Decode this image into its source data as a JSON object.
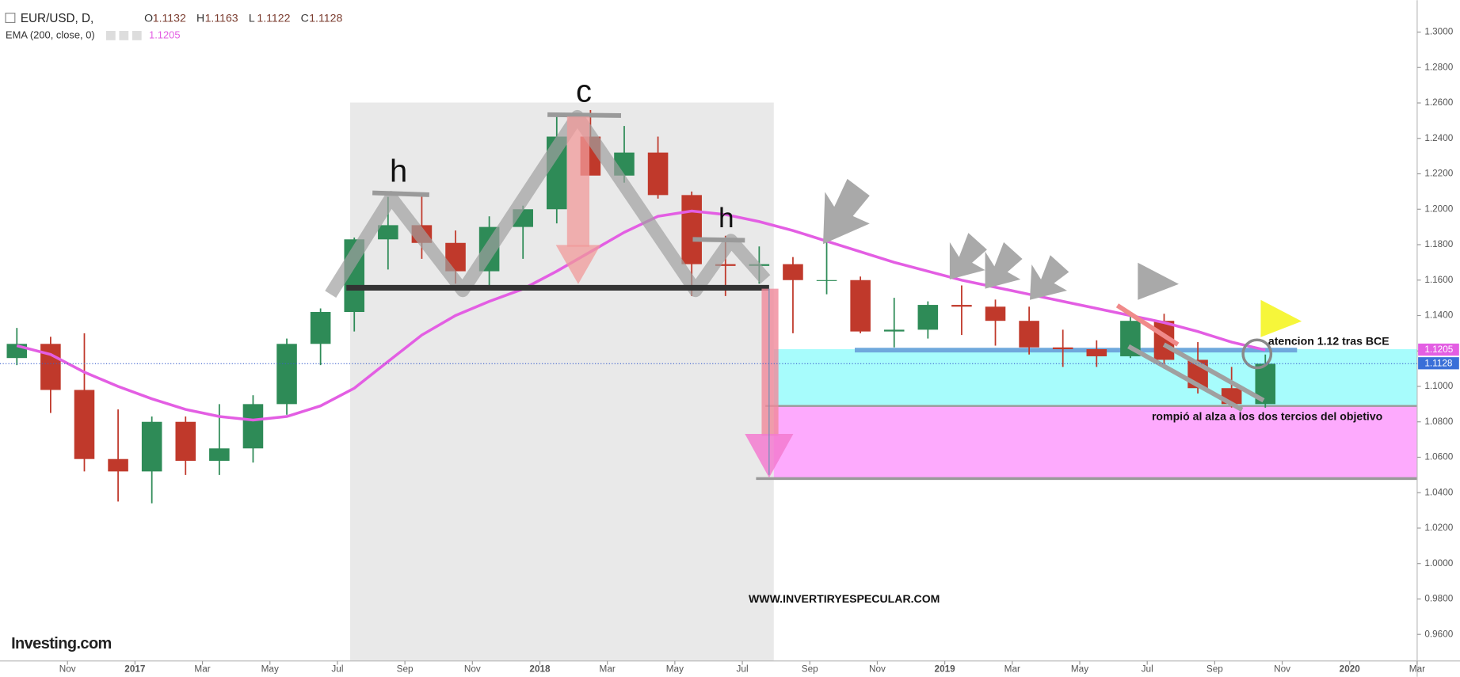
{
  "chart_data": {
    "type": "candlestick",
    "header": {
      "symbol": "EUR/USD, D,",
      "ohlc": [
        {
          "label": "O",
          "value": 1.1132
        },
        {
          "label": "H",
          "value": 1.1163
        },
        {
          "label": "L",
          "value": 1.1122
        },
        {
          "label": "C",
          "value": 1.1128
        }
      ]
    },
    "x": [
      "2016-09",
      "2016-10",
      "2016-11",
      "2016-12",
      "2017-01",
      "2017-02",
      "2017-03",
      "2017-04",
      "2017-05",
      "2017-06",
      "2017-07",
      "2017-08",
      "2017-09",
      "2017-10",
      "2017-11",
      "2017-12",
      "2018-01",
      "2018-02",
      "2018-03",
      "2018-04",
      "2018-05",
      "2018-06",
      "2018-07",
      "2018-08",
      "2018-09",
      "2018-10",
      "2018-11",
      "2018-12",
      "2019-01",
      "2019-02",
      "2019-03",
      "2019-04",
      "2019-05",
      "2019-06",
      "2019-07",
      "2019-08",
      "2019-09",
      "2019-10"
    ],
    "series": [
      {
        "name": "EUR/USD",
        "type": "candlestick",
        "up_color": "#2e8b57",
        "down_color": "#c0392b",
        "open": [
          1.116,
          1.124,
          1.098,
          1.059,
          1.052,
          1.08,
          1.058,
          1.065,
          1.09,
          1.124,
          1.142,
          1.183,
          1.191,
          1.181,
          1.165,
          1.19,
          1.2,
          1.241,
          1.219,
          1.232,
          1.208,
          1.169,
          1.168,
          1.169,
          1.16,
          1.16,
          1.131,
          1.132,
          1.146,
          1.145,
          1.137,
          1.122,
          1.121,
          1.117,
          1.137,
          1.115,
          1.099,
          1.09
        ],
        "high": [
          1.133,
          1.128,
          1.13,
          1.087,
          1.083,
          1.083,
          1.09,
          1.095,
          1.127,
          1.144,
          1.184,
          1.207,
          1.209,
          1.188,
          1.196,
          1.202,
          1.254,
          1.256,
          1.247,
          1.241,
          1.21,
          1.185,
          1.179,
          1.173,
          1.182,
          1.162,
          1.15,
          1.148,
          1.157,
          1.149,
          1.145,
          1.132,
          1.126,
          1.141,
          1.141,
          1.125,
          1.111,
          1.118
        ],
        "low": [
          1.112,
          1.085,
          1.052,
          1.035,
          1.034,
          1.05,
          1.05,
          1.057,
          1.084,
          1.112,
          1.131,
          1.166,
          1.172,
          1.158,
          1.155,
          1.172,
          1.192,
          1.22,
          1.215,
          1.206,
          1.151,
          1.151,
          1.158,
          1.13,
          1.152,
          1.13,
          1.122,
          1.127,
          1.129,
          1.123,
          1.118,
          1.111,
          1.111,
          1.116,
          1.11,
          1.096,
          1.088,
          1.088
        ],
        "close": [
          1.124,
          1.098,
          1.059,
          1.052,
          1.08,
          1.058,
          1.065,
          1.09,
          1.124,
          1.142,
          1.183,
          1.191,
          1.181,
          1.165,
          1.19,
          1.2,
          1.241,
          1.219,
          1.232,
          1.208,
          1.169,
          1.168,
          1.169,
          1.16,
          1.16,
          1.131,
          1.132,
          1.146,
          1.145,
          1.137,
          1.122,
          1.121,
          1.117,
          1.137,
          1.115,
          1.099,
          1.09,
          1.1128
        ]
      },
      {
        "name": "EMA (200, close, 0)",
        "type": "line",
        "color": "#e35ee3",
        "values": [
          1.123,
          1.118,
          1.108,
          1.1,
          1.093,
          1.087,
          1.083,
          1.081,
          1.083,
          1.089,
          1.099,
          1.114,
          1.129,
          1.14,
          1.148,
          1.155,
          1.165,
          1.176,
          1.187,
          1.196,
          1.199,
          1.197,
          1.193,
          1.188,
          1.182,
          1.176,
          1.17,
          1.165,
          1.16,
          1.156,
          1.152,
          1.148,
          1.144,
          1.14,
          1.136,
          1.131,
          1.125,
          1.1205
        ]
      }
    ],
    "xlim": [
      "2016-09",
      "2020-03"
    ],
    "xticks": [
      {
        "value": "2016-11",
        "label": "Nov"
      },
      {
        "value": "2017-01",
        "label": "2017"
      },
      {
        "value": "2017-03",
        "label": "Mar"
      },
      {
        "value": "2017-05",
        "label": "May"
      },
      {
        "value": "2017-07",
        "label": "Jul"
      },
      {
        "value": "2017-09",
        "label": "Sep"
      },
      {
        "value": "2017-11",
        "label": "Nov"
      },
      {
        "value": "2018-01",
        "label": "2018"
      },
      {
        "value": "2018-03",
        "label": "Mar"
      },
      {
        "value": "2018-05",
        "label": "May"
      },
      {
        "value": "2018-07",
        "label": "Jul"
      },
      {
        "value": "2018-09",
        "label": "Sep"
      },
      {
        "value": "2018-11",
        "label": "Nov"
      },
      {
        "value": "2019-01",
        "label": "2019"
      },
      {
        "value": "2019-03",
        "label": "Mar"
      },
      {
        "value": "2019-05",
        "label": "May"
      },
      {
        "value": "2019-07",
        "label": "Jul"
      },
      {
        "value": "2019-09",
        "label": "Sep"
      },
      {
        "value": "2019-11",
        "label": "Nov"
      },
      {
        "value": "2020-01",
        "label": "2020"
      },
      {
        "value": "2020-03",
        "label": "Mar"
      }
    ],
    "ylim": [
      0.945,
      1.318
    ],
    "yticks": [
      {
        "value": 1.3,
        "label": "1.3000"
      },
      {
        "value": 1.28,
        "label": "1.2800"
      },
      {
        "value": 1.26,
        "label": "1.2600"
      },
      {
        "value": 1.24,
        "label": "1.2400"
      },
      {
        "value": 1.22,
        "label": "1.2200"
      },
      {
        "value": 1.2,
        "label": "1.2000"
      },
      {
        "value": 1.18,
        "label": "1.1800"
      },
      {
        "value": 1.16,
        "label": "1.1600"
      },
      {
        "value": 1.14,
        "label": "1.1400"
      },
      {
        "value": 1.12,
        "label": "1.1200"
      },
      {
        "value": 1.1,
        "label": "1.1000"
      },
      {
        "value": 1.08,
        "label": "1.0800"
      },
      {
        "value": 1.06,
        "label": "1.0600"
      },
      {
        "value": 1.04,
        "label": "1.0400"
      },
      {
        "value": 1.02,
        "label": "1.0200"
      },
      {
        "value": 1.0,
        "label": "1.0000"
      },
      {
        "value": 0.98,
        "label": "0.9800"
      },
      {
        "value": 0.96,
        "label": "0.9600"
      }
    ],
    "grid": false,
    "annotations": [
      "h",
      "c",
      "h",
      "atencion 1.12 tras BCE",
      "rompió al alza a los dos tercios del objetivo",
      "WWW.INVERTIRYESPECULAR.COM"
    ],
    "logo": "Investing.com"
  }
}
